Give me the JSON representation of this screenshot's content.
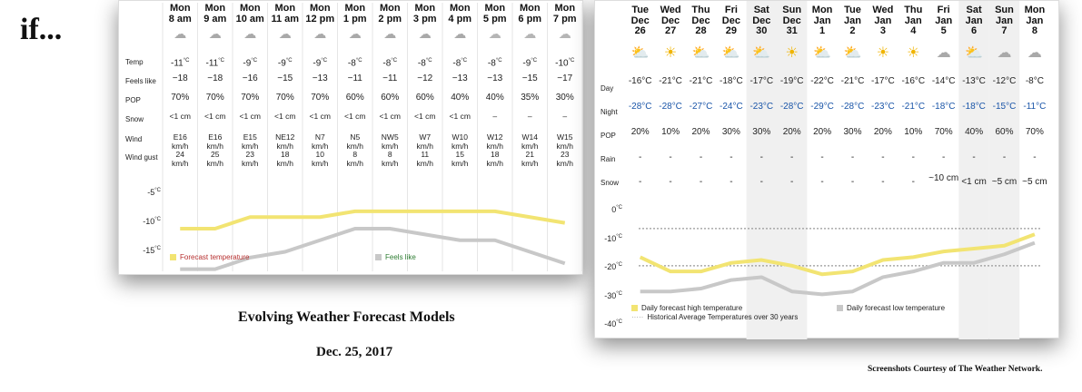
{
  "caption": {
    "lead": "if...",
    "title": "Evolving Weather Forecast Models",
    "date": "Dec. 25, 2017",
    "credit": "Screenshots Courtesy of The Weather Network."
  },
  "hourly": {
    "times": [
      "Mon 8 am",
      "Mon 9 am",
      "Mon 10 am",
      "Mon 11 am",
      "Mon 12 pm",
      "Mon 1 pm",
      "Mon 2 pm",
      "Mon 3 pm",
      "Mon 4 pm",
      "Mon 5 pm",
      "Mon 6 pm",
      "Mon 7 pm"
    ],
    "icons": [
      "snow-cloud-icon",
      "snow-cloud-icon",
      "snow-cloud-icon",
      "snow-cloud-icon",
      "snow-cloud-icon",
      "snow-cloud-icon",
      "snow-cloud-icon",
      "snow-cloud-icon",
      "snow-cloud-icon",
      "cloud-icon",
      "cloud-icon",
      "partly-cloudy-night-icon"
    ],
    "row_labels": {
      "temp": "Temp",
      "feels": "Feels like",
      "pop": "POP",
      "snow": "Snow",
      "wind": "Wind",
      "gust": "Wind gust"
    },
    "temp": [
      "-11",
      "-11",
      "-9",
      "-9",
      "-9",
      "-8",
      "-8",
      "-8",
      "-8",
      "-8",
      "-9",
      "-10"
    ],
    "temp_unit": "°C",
    "feels": [
      "−18",
      "−18",
      "−16",
      "−15",
      "−13",
      "−11",
      "−11",
      "−12",
      "−13",
      "−13",
      "−15",
      "−17"
    ],
    "pop": [
      "70%",
      "70%",
      "70%",
      "70%",
      "70%",
      "60%",
      "60%",
      "60%",
      "40%",
      "40%",
      "35%",
      "30%"
    ],
    "snow": [
      "<1 cm",
      "<1 cm",
      "<1 cm",
      "<1 cm",
      "<1 cm",
      "<1 cm",
      "<1 cm",
      "<1 cm",
      "<1 cm",
      "–",
      "–",
      "–"
    ],
    "wind_dir": [
      "E16",
      "E16",
      "E15",
      "NE12",
      "N7",
      "N5",
      "NW5",
      "W7",
      "W10",
      "W12",
      "W14",
      "W15"
    ],
    "wind_unit": "km/h",
    "gust": [
      "24",
      "25",
      "23",
      "18",
      "10",
      "8",
      "8",
      "11",
      "15",
      "18",
      "21",
      "23"
    ],
    "chart_data": {
      "type": "line",
      "x": [
        "Mon 8 am",
        "Mon 9 am",
        "Mon 10 am",
        "Mon 11 am",
        "Mon 12 pm",
        "Mon 1 pm",
        "Mon 2 pm",
        "Mon 3 pm",
        "Mon 4 pm",
        "Mon 5 pm",
        "Mon 6 pm",
        "Mon 7 pm"
      ],
      "series": [
        {
          "name": "Forecast temperature",
          "values": [
            -11,
            -11,
            -9,
            -9,
            -9,
            -8,
            -8,
            -8,
            -8,
            -8,
            -9,
            -10
          ],
          "color": "#f2e472"
        },
        {
          "name": "Feels like",
          "values": [
            -18,
            -18,
            -16,
            -15,
            -13,
            -11,
            -11,
            -12,
            -13,
            -13,
            -15,
            -17
          ],
          "color": "#c8c8c8"
        }
      ],
      "yticks": [
        "-5",
        "-10",
        "-15"
      ],
      "ytick_values": [
        -5,
        -10,
        -15
      ],
      "ylim": [
        -19,
        -3
      ],
      "grid": false,
      "legend": "bottom"
    }
  },
  "daily": {
    "days": [
      {
        "d": "Tue",
        "n": "Dec",
        "t": "26"
      },
      {
        "d": "Wed",
        "n": "Dec",
        "t": "27"
      },
      {
        "d": "Thu",
        "n": "Dec",
        "t": "28"
      },
      {
        "d": "Fri",
        "n": "Dec",
        "t": "29"
      },
      {
        "d": "Sat",
        "n": "Dec",
        "t": "30"
      },
      {
        "d": "Sun",
        "n": "Dec",
        "t": "31"
      },
      {
        "d": "Mon",
        "n": "Jan",
        "t": "1"
      },
      {
        "d": "Tue",
        "n": "Jan",
        "t": "2"
      },
      {
        "d": "Wed",
        "n": "Jan",
        "t": "3"
      },
      {
        "d": "Thu",
        "n": "Jan",
        "t": "4"
      },
      {
        "d": "Fri",
        "n": "Jan",
        "t": "5"
      },
      {
        "d": "Sat",
        "n": "Jan",
        "t": "6"
      },
      {
        "d": "Sun",
        "n": "Jan",
        "t": "7"
      },
      {
        "d": "Mon",
        "n": "Jan",
        "t": "8"
      }
    ],
    "icons": [
      "sun-cloud-icon",
      "sun-icon",
      "sun-cloud-icon",
      "sun-cloud-icon",
      "sun-cloud-icon",
      "sun-icon",
      "sun-cloud-icon",
      "sun-cloud-icon",
      "sun-icon",
      "sun-icon",
      "snow-cloud-icon",
      "sun-snow-cloud-icon",
      "snow-cloud-icon",
      "snow-cloud-icon"
    ],
    "row_labels": {
      "day": "Day",
      "night": "Night",
      "pop": "POP",
      "rain": "Rain",
      "snow": "Snow"
    },
    "day": [
      "-16°C",
      "-21°C",
      "-21°C",
      "-18°C",
      "-17°C",
      "-19°C",
      "-22°C",
      "-21°C",
      "-17°C",
      "-16°C",
      "-14°C",
      "-13°C",
      "-12°C",
      "-8°C"
    ],
    "night": [
      "-28°C",
      "-28°C",
      "-27°C",
      "-24°C",
      "-23°C",
      "-28°C",
      "-29°C",
      "-28°C",
      "-23°C",
      "-21°C",
      "-18°C",
      "-18°C",
      "-15°C",
      "-11°C"
    ],
    "pop": [
      "20%",
      "10%",
      "20%",
      "30%",
      "30%",
      "20%",
      "20%",
      "30%",
      "20%",
      "10%",
      "70%",
      "40%",
      "60%",
      "70%"
    ],
    "rain": [
      "-",
      "-",
      "-",
      "-",
      "-",
      "-",
      "-",
      "-",
      "-",
      "-",
      "-",
      "-",
      "-",
      "-"
    ],
    "snow": [
      "-",
      "-",
      "-",
      "-",
      "-",
      "-",
      "-",
      "-",
      "-",
      "-",
      "~10 cm",
      "<1 cm",
      "~5 cm",
      "~5 cm"
    ],
    "chart_data": {
      "type": "line",
      "x": [
        "Tue Dec 26",
        "Wed Dec 27",
        "Thu Dec 28",
        "Fri Dec 29",
        "Sat Dec 30",
        "Sun Dec 31",
        "Mon Jan 1",
        "Tue Jan 2",
        "Wed Jan 3",
        "Thu Jan 4",
        "Fri Jan 5",
        "Sat Jan 6",
        "Sun Jan 7",
        "Mon Jan 8"
      ],
      "series": [
        {
          "name": "Daily forecast high temperature",
          "values": [
            -16,
            -21,
            -21,
            -18,
            -17,
            -19,
            -22,
            -21,
            -17,
            -16,
            -14,
            -13,
            -12,
            -8
          ],
          "color": "#f2e472"
        },
        {
          "name": "Daily forecast low temperature",
          "values": [
            -28,
            -28,
            -27,
            -24,
            -23,
            -28,
            -29,
            -28,
            -23,
            -21,
            -18,
            -18,
            -15,
            -11
          ],
          "color": "#c8c8c8"
        }
      ],
      "reference_lines": {
        "name": "Historical Average Temperatures over 30 years",
        "values": [
          -6,
          -19
        ]
      },
      "yticks": [
        "0",
        "-10",
        "-20",
        "-30",
        "-40"
      ],
      "ytick_values": [
        0,
        -10,
        -20,
        -30,
        -40
      ],
      "ylim": [
        -40,
        0
      ],
      "grid": false,
      "legend": "bottom",
      "weekend_shading": [
        "Sat Dec 30",
        "Sun Dec 31",
        "Sat Jan 6",
        "Sun Jan 7"
      ]
    }
  }
}
